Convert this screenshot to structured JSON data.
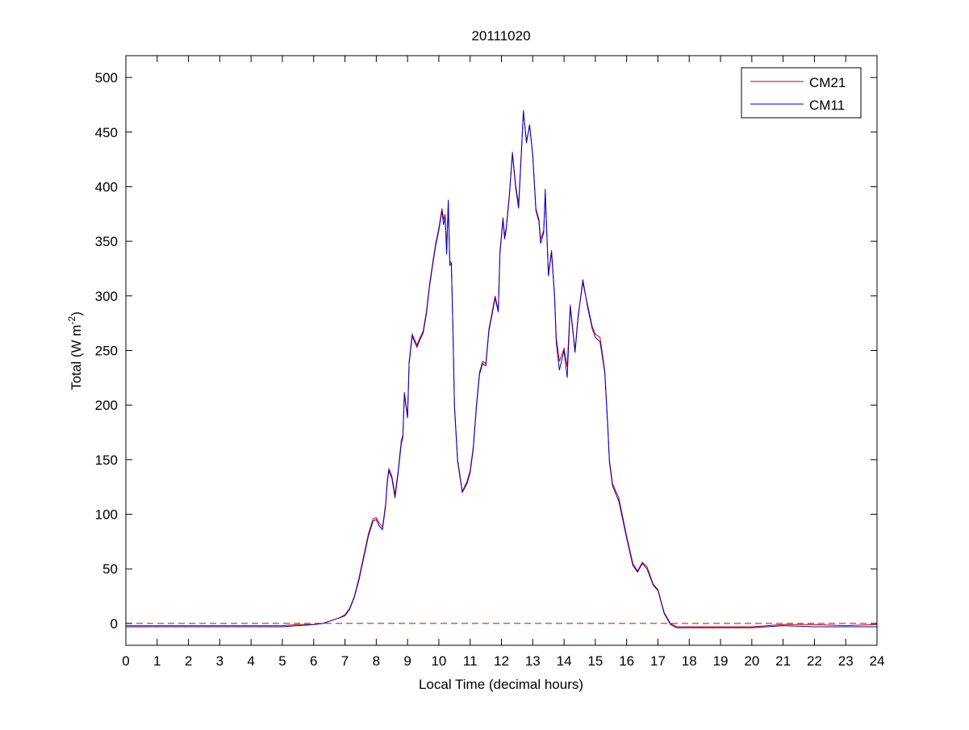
{
  "chart_data": {
    "type": "line",
    "title": "20111020",
    "xlabel": "Local Time (decimal hours)",
    "ylabel_main": "Total (W m",
    "ylabel_sup": "-2",
    "ylabel_close": ")",
    "xlim": [
      0,
      24
    ],
    "ylim": [
      -20,
      520
    ],
    "xticks": [
      0,
      1,
      2,
      3,
      4,
      5,
      6,
      7,
      8,
      9,
      10,
      11,
      12,
      13,
      14,
      15,
      16,
      17,
      18,
      19,
      20,
      21,
      22,
      23,
      24
    ],
    "yticks": [
      0,
      50,
      100,
      150,
      200,
      250,
      300,
      350,
      400,
      450,
      500
    ],
    "grid": false,
    "legend_position": "top-right",
    "reference_line": {
      "y": 0,
      "style": "dashed",
      "color": "#cc0000"
    },
    "x": [
      0,
      1,
      2,
      3,
      4,
      5,
      5.5,
      6,
      6.3,
      6.5,
      6.8,
      7,
      7.15,
      7.3,
      7.45,
      7.6,
      7.75,
      7.9,
      8.0,
      8.1,
      8.2,
      8.3,
      8.35,
      8.4,
      8.5,
      8.6,
      8.7,
      8.8,
      8.85,
      8.9,
      9.0,
      9.05,
      9.15,
      9.3,
      9.4,
      9.5,
      9.6,
      9.7,
      9.8,
      9.9,
      10.0,
      10.1,
      10.15,
      10.2,
      10.25,
      10.3,
      10.35,
      10.4,
      10.45,
      10.5,
      10.6,
      10.75,
      10.9,
      11.0,
      11.1,
      11.2,
      11.3,
      11.4,
      11.5,
      11.6,
      11.7,
      11.8,
      11.9,
      11.95,
      12.05,
      12.1,
      12.15,
      12.25,
      12.35,
      12.45,
      12.55,
      12.65,
      12.7,
      12.8,
      12.9,
      13.0,
      13.1,
      13.2,
      13.25,
      13.35,
      13.4,
      13.5,
      13.6,
      13.7,
      13.75,
      13.85,
      14.0,
      14.1,
      14.2,
      14.35,
      14.45,
      14.6,
      14.75,
      14.9,
      15.0,
      15.15,
      15.3,
      15.4,
      15.45,
      15.55,
      15.75,
      16.0,
      16.2,
      16.35,
      16.5,
      16.65,
      16.85,
      17.0,
      17.2,
      17.4,
      17.6,
      18,
      19,
      20,
      21,
      22,
      23,
      24
    ],
    "series": [
      {
        "name": "CM21",
        "color": "#cc0000",
        "values": [
          -2,
          -2,
          -2,
          -2,
          -2,
          -2,
          -1,
          -1,
          0,
          2,
          5,
          8,
          14,
          25,
          42,
          62,
          82,
          96,
          97,
          92,
          88,
          110,
          130,
          142,
          135,
          118,
          140,
          168,
          172,
          212,
          190,
          240,
          265,
          255,
          262,
          268,
          285,
          310,
          330,
          348,
          362,
          380,
          370,
          375,
          342,
          385,
          332,
          330,
          270,
          200,
          150,
          121,
          130,
          140,
          162,
          200,
          230,
          240,
          238,
          270,
          285,
          300,
          287,
          340,
          372,
          355,
          362,
          392,
          432,
          402,
          384,
          440,
          468,
          442,
          455,
          430,
          380,
          370,
          352,
          360,
          392,
          320,
          342,
          300,
          262,
          240,
          252,
          235,
          292,
          250,
          282,
          312,
          292,
          272,
          265,
          262,
          232,
          180,
          150,
          128,
          115,
          80,
          55,
          48,
          56,
          52,
          36,
          31,
          10,
          0,
          -3,
          -3,
          -3,
          -3,
          -1,
          -1,
          -2,
          -1
        ]
      },
      {
        "name": "CM11",
        "color": "#0000cc",
        "values": [
          -3,
          -3,
          -3,
          -3,
          -3,
          -3,
          -2,
          -1,
          0,
          2,
          5,
          7,
          13,
          24,
          40,
          60,
          80,
          94,
          95,
          89,
          86,
          108,
          128,
          140,
          133,
          115,
          138,
          165,
          170,
          210,
          188,
          238,
          263,
          253,
          260,
          266,
          283,
          308,
          328,
          346,
          360,
          378,
          365,
          372,
          338,
          388,
          328,
          330,
          268,
          198,
          148,
          120,
          128,
          138,
          160,
          198,
          228,
          238,
          236,
          268,
          283,
          298,
          285,
          338,
          370,
          352,
          360,
          390,
          430,
          400,
          380,
          438,
          470,
          440,
          457,
          428,
          378,
          368,
          348,
          358,
          398,
          318,
          340,
          298,
          258,
          232,
          250,
          225,
          290,
          248,
          280,
          315,
          290,
          270,
          262,
          258,
          230,
          178,
          148,
          126,
          112,
          78,
          53,
          47,
          55,
          50,
          35,
          30,
          9,
          -1,
          -4,
          -4,
          -4,
          -4,
          -2,
          -3,
          -3,
          -3
        ]
      }
    ]
  }
}
